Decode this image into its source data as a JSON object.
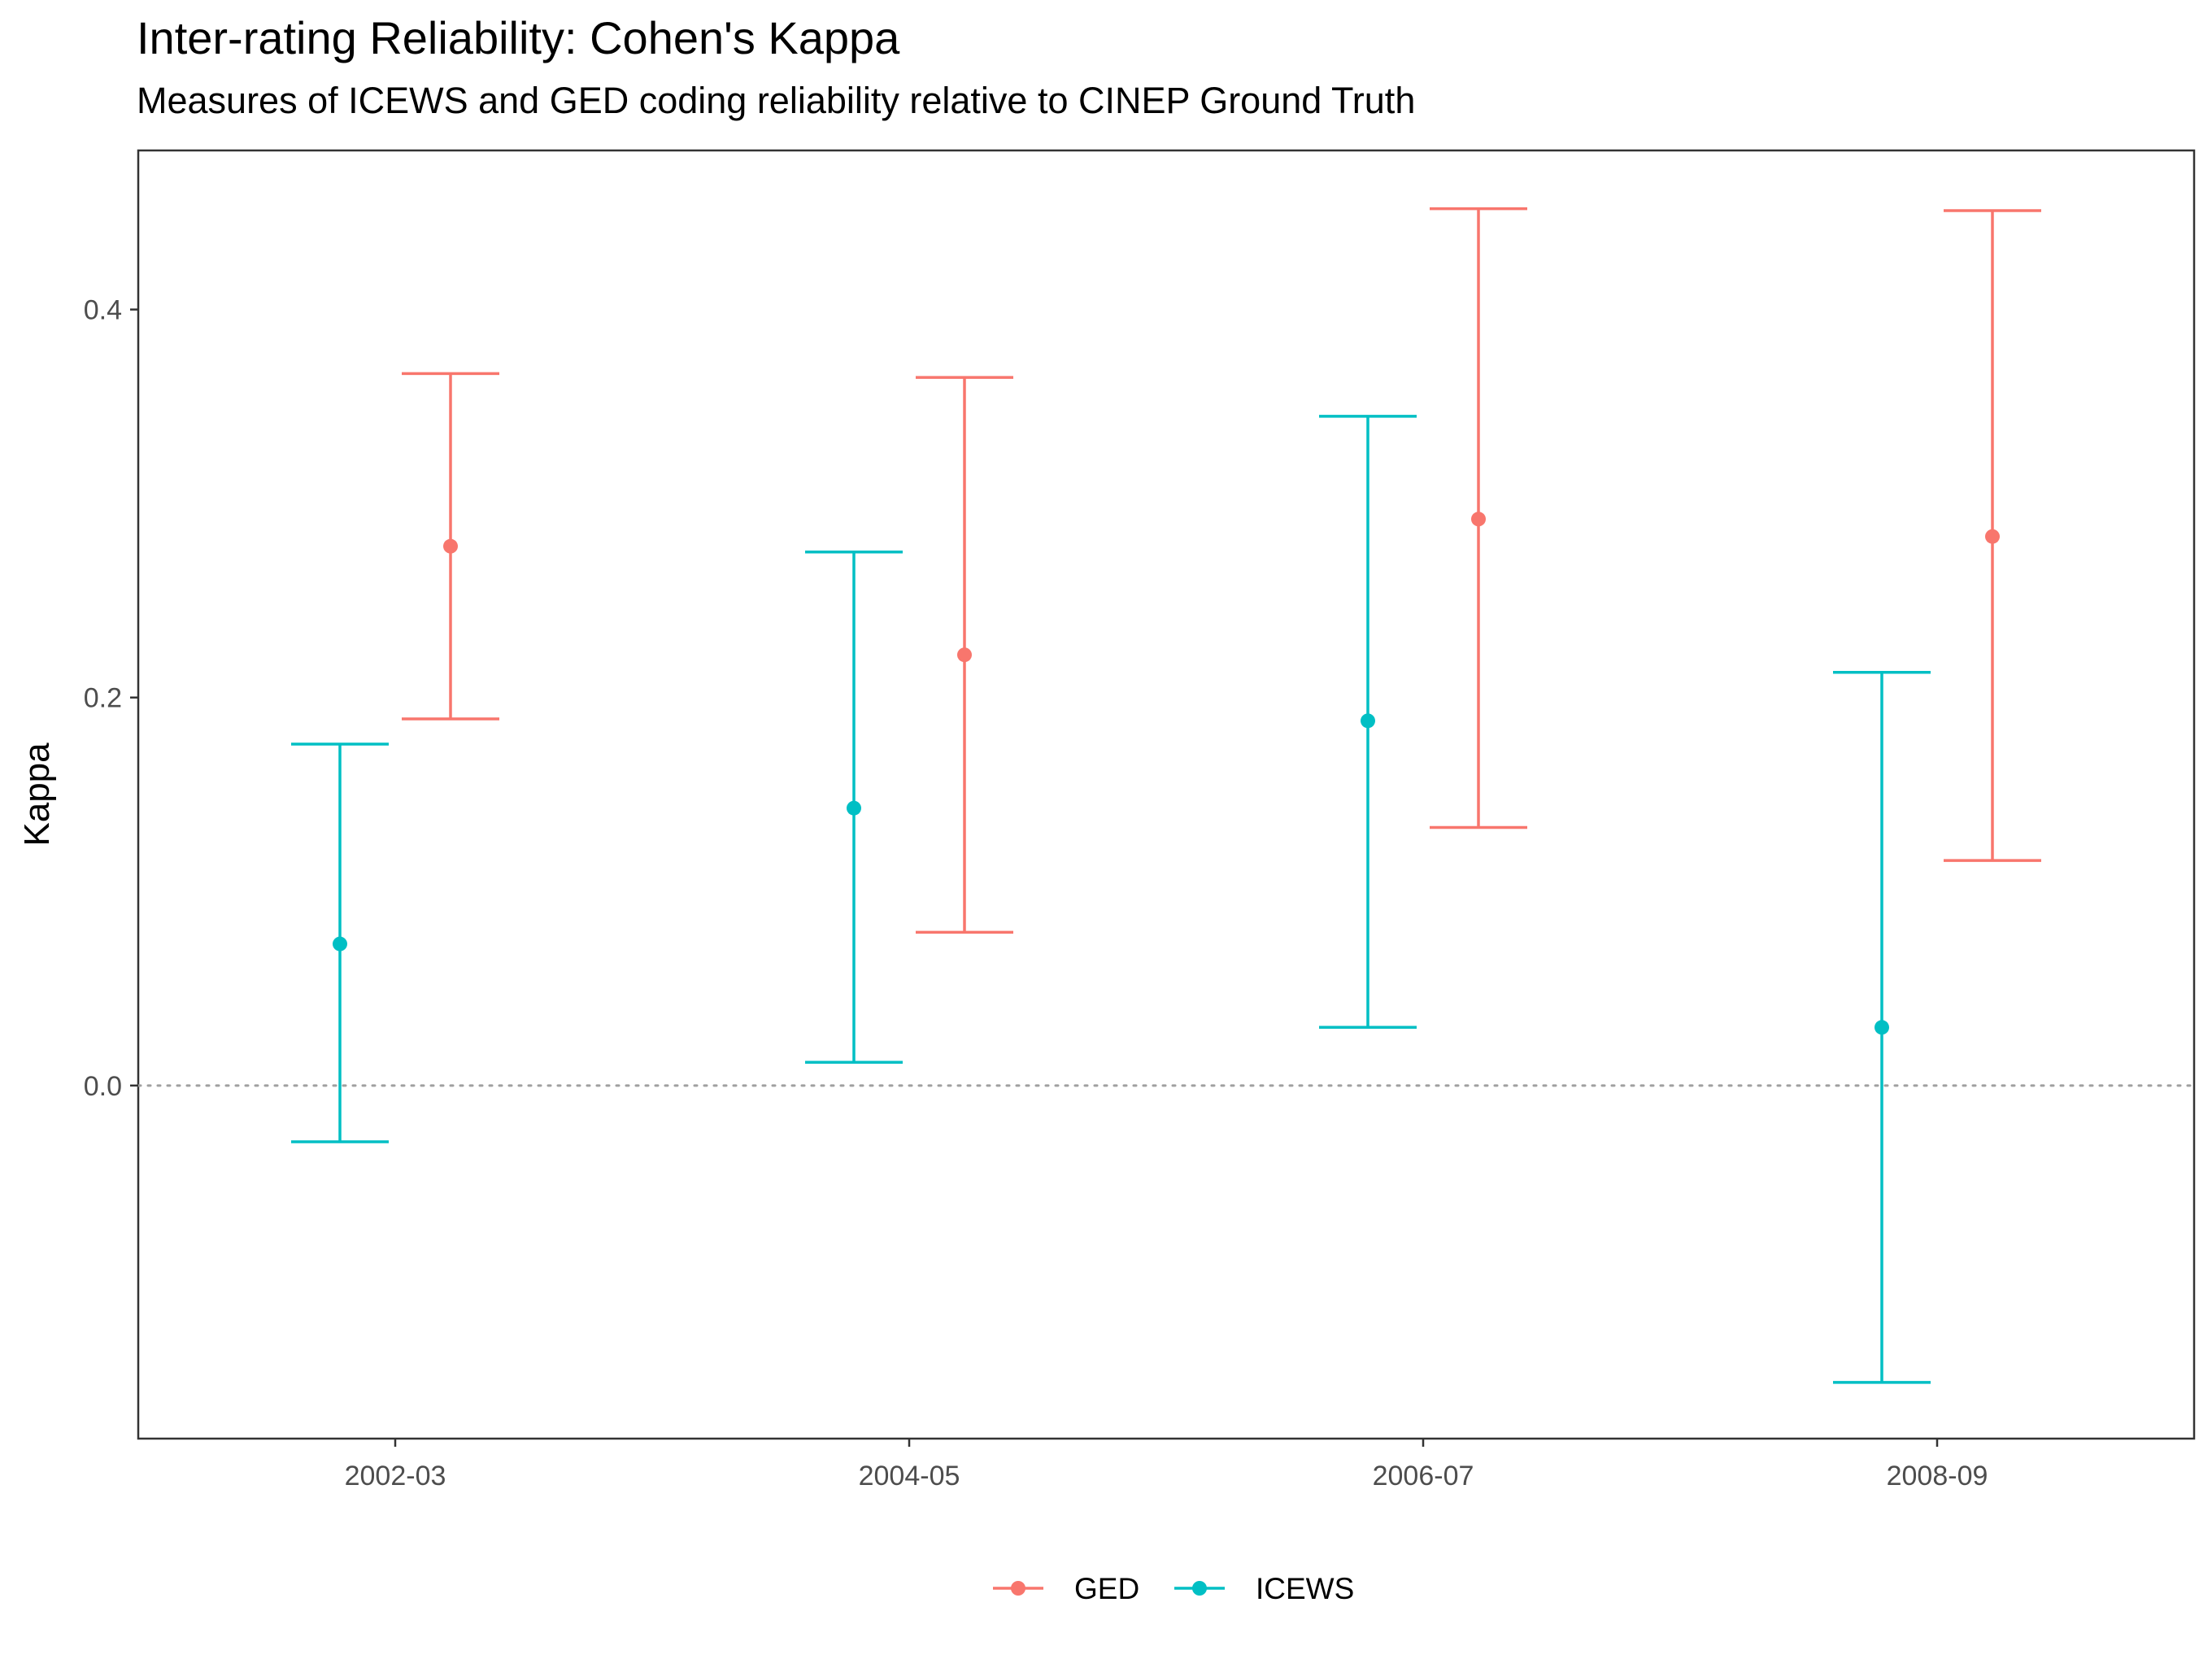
{
  "chart_data": {
    "type": "errorbar",
    "title": "Inter-rating Reliability: Cohen's Kappa",
    "subtitle": "Measures of ICEWS and GED coding reliability relative to CINEP Ground Truth",
    "xlabel": "",
    "ylabel": "Kappa",
    "categories": [
      "2002-03",
      "2004-05",
      "2006-07",
      "2008-09"
    ],
    "yticks": [
      0.0,
      0.2,
      0.4
    ],
    "ytick_labels": [
      "0.0",
      "0.2",
      "0.4"
    ],
    "ylim": [
      -0.182,
      0.482
    ],
    "reference_line": 0,
    "grid": false,
    "legend_position": "bottom",
    "series": [
      {
        "name": "GED",
        "color": "#F8766D",
        "estimate": [
          0.278,
          0.222,
          0.292,
          0.283
        ],
        "lower": [
          0.189,
          0.079,
          0.133,
          0.116
        ],
        "upper": [
          0.367,
          0.365,
          0.452,
          0.451
        ]
      },
      {
        "name": "ICEWS",
        "color": "#00BFC4",
        "estimate": [
          0.073,
          0.143,
          0.188,
          0.03
        ],
        "lower": [
          -0.029,
          0.012,
          0.03,
          -0.153
        ],
        "upper": [
          0.176,
          0.275,
          0.345,
          0.213
        ]
      }
    ]
  }
}
